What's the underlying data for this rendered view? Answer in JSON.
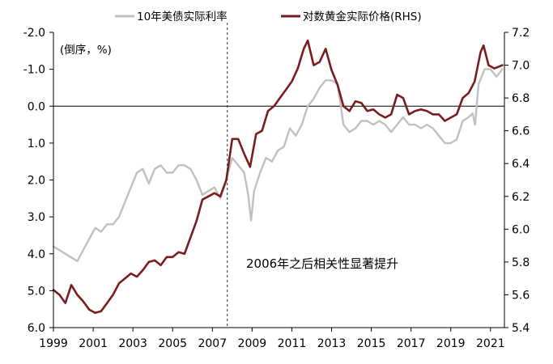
{
  "chart_data": {
    "type": "line",
    "title": "",
    "x_tick_labels": [
      "1999",
      "2001",
      "2003",
      "2005",
      "2007",
      "2009",
      "2011",
      "2013",
      "2015",
      "2017",
      "2019",
      "2021"
    ],
    "x_range": [
      1999.0,
      2021.7
    ],
    "left_axis": {
      "label": "(倒序，%)",
      "inverted": true,
      "range": [
        -2.0,
        6.0
      ],
      "tick_labels": [
        "-2.0",
        "-1.0",
        "0.0",
        "1.0",
        "2.0",
        "3.0",
        "4.0",
        "5.0",
        "6.0"
      ],
      "ticks": [
        -2.0,
        -1.0,
        0.0,
        1.0,
        2.0,
        3.0,
        4.0,
        5.0,
        6.0
      ]
    },
    "right_axis": {
      "label": "",
      "range": [
        5.4,
        7.2
      ],
      "tick_labels": [
        "5.4",
        "5.6",
        "5.8",
        "6.0",
        "6.2",
        "6.4",
        "6.6",
        "6.8",
        "7.0",
        "7.2"
      ],
      "ticks": [
        5.4,
        5.6,
        5.8,
        6.0,
        6.2,
        6.4,
        6.6,
        6.8,
        7.0,
        7.2
      ]
    },
    "zero_line": 0.0,
    "annotation": {
      "text": "2006年之后相关性显著提升",
      "vline_x": 2007.75
    },
    "legend_placement": "top",
    "series": [
      {
        "name": "10年美债实际利率",
        "axis": "left",
        "color": "#c0c0c0",
        "x": [
          1999.0,
          1999.3,
          1999.6,
          1999.9,
          2000.2,
          2000.5,
          2000.8,
          2001.1,
          2001.4,
          2001.7,
          2002.0,
          2002.3,
          2002.6,
          2002.9,
          2003.2,
          2003.5,
          2003.8,
          2004.1,
          2004.4,
          2004.7,
          2005.0,
          2005.3,
          2005.6,
          2005.9,
          2006.2,
          2006.5,
          2006.8,
          2007.1,
          2007.4,
          2007.7,
          2008.0,
          2008.3,
          2008.6,
          2008.8,
          2008.95,
          2009.1,
          2009.4,
          2009.7,
          2010.0,
          2010.3,
          2010.6,
          2010.9,
          2011.2,
          2011.5,
          2011.8,
          2012.1,
          2012.4,
          2012.7,
          2013.0,
          2013.3,
          2013.6,
          2013.9,
          2014.2,
          2014.5,
          2014.8,
          2015.1,
          2015.4,
          2015.7,
          2016.0,
          2016.3,
          2016.6,
          2016.9,
          2017.2,
          2017.5,
          2017.8,
          2018.1,
          2018.4,
          2018.7,
          2019.0,
          2019.3,
          2019.6,
          2019.9,
          2020.1,
          2020.22,
          2020.4,
          2020.7,
          2021.0,
          2021.3,
          2021.6
        ],
        "values": [
          3.8,
          3.9,
          4.0,
          4.1,
          4.2,
          3.9,
          3.6,
          3.3,
          3.4,
          3.2,
          3.2,
          3.0,
          2.6,
          2.2,
          1.8,
          1.7,
          2.1,
          1.7,
          1.6,
          1.8,
          1.8,
          1.6,
          1.6,
          1.7,
          2.0,
          2.4,
          2.3,
          2.2,
          2.5,
          2.0,
          1.4,
          1.6,
          1.8,
          2.4,
          3.1,
          2.3,
          1.8,
          1.4,
          1.5,
          1.2,
          1.1,
          0.6,
          0.8,
          0.5,
          0.0,
          -0.2,
          -0.5,
          -0.7,
          -0.7,
          -0.6,
          0.5,
          0.7,
          0.6,
          0.4,
          0.4,
          0.5,
          0.4,
          0.5,
          0.7,
          0.5,
          0.3,
          0.5,
          0.5,
          0.6,
          0.5,
          0.6,
          0.8,
          1.0,
          1.0,
          0.9,
          0.4,
          0.3,
          0.2,
          0.5,
          -0.6,
          -1.0,
          -1.0,
          -0.8,
          -1.0
        ]
      },
      {
        "name": "对数黄金实际价格(RHS)",
        "axis": "right",
        "color": "#7b1c1c",
        "x": [
          1999.0,
          1999.3,
          1999.6,
          1999.9,
          2000.2,
          2000.5,
          2000.8,
          2001.1,
          2001.4,
          2001.7,
          2002.0,
          2002.3,
          2002.6,
          2002.9,
          2003.2,
          2003.5,
          2003.8,
          2004.1,
          2004.4,
          2004.7,
          2005.0,
          2005.3,
          2005.6,
          2005.9,
          2006.2,
          2006.5,
          2006.8,
          2007.1,
          2007.4,
          2007.7,
          2008.0,
          2008.3,
          2008.6,
          2008.9,
          2009.2,
          2009.5,
          2009.8,
          2010.1,
          2010.4,
          2010.7,
          2011.0,
          2011.3,
          2011.6,
          2011.8,
          2012.1,
          2012.4,
          2012.7,
          2013.0,
          2013.3,
          2013.6,
          2013.9,
          2014.2,
          2014.5,
          2014.8,
          2015.1,
          2015.4,
          2015.7,
          2016.0,
          2016.3,
          2016.6,
          2016.9,
          2017.2,
          2017.5,
          2017.8,
          2018.1,
          2018.4,
          2018.7,
          2019.0,
          2019.3,
          2019.6,
          2019.9,
          2020.2,
          2020.5,
          2020.65,
          2020.9,
          2021.2,
          2021.6
        ],
        "values": [
          5.63,
          5.6,
          5.55,
          5.66,
          5.6,
          5.56,
          5.51,
          5.49,
          5.5,
          5.55,
          5.6,
          5.67,
          5.7,
          5.73,
          5.71,
          5.75,
          5.8,
          5.81,
          5.78,
          5.83,
          5.83,
          5.86,
          5.85,
          5.95,
          6.05,
          6.18,
          6.2,
          6.22,
          6.2,
          6.3,
          6.55,
          6.55,
          6.46,
          6.38,
          6.58,
          6.6,
          6.72,
          6.75,
          6.8,
          6.85,
          6.9,
          6.98,
          7.1,
          7.15,
          7.0,
          7.02,
          7.1,
          6.97,
          6.88,
          6.75,
          6.72,
          6.78,
          6.77,
          6.72,
          6.73,
          6.7,
          6.68,
          6.7,
          6.82,
          6.8,
          6.7,
          6.72,
          6.73,
          6.72,
          6.7,
          6.7,
          6.66,
          6.68,
          6.7,
          6.8,
          6.83,
          6.9,
          7.08,
          7.12,
          7.0,
          6.98,
          7.0
        ]
      }
    ]
  }
}
